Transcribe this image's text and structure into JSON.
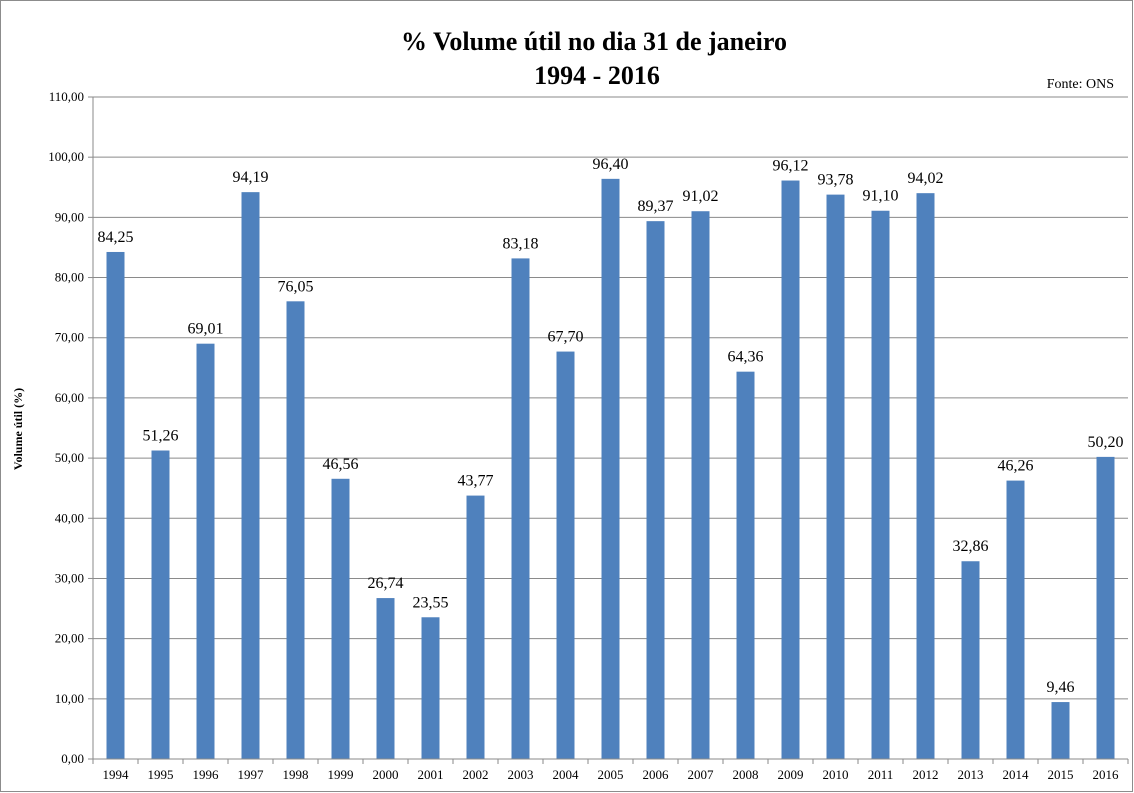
{
  "chart_data": {
    "type": "bar",
    "title": "% Volume útil no dia 31 de janeiro",
    "subtitle": "1994 - 2016",
    "source": "Fonte: ONS",
    "xlabel": "",
    "ylabel": "Volume útil (%)",
    "ylim": [
      0,
      110
    ],
    "ytick_step": 10,
    "y_ticks": [
      "0,00",
      "10,00",
      "20,00",
      "30,00",
      "40,00",
      "50,00",
      "60,00",
      "70,00",
      "80,00",
      "90,00",
      "100,00",
      "110,00"
    ],
    "grid": true,
    "bar_color": "#4F81BD",
    "categories": [
      "1994",
      "1995",
      "1996",
      "1997",
      "1998",
      "1999",
      "2000",
      "2001",
      "2002",
      "2003",
      "2004",
      "2005",
      "2006",
      "2007",
      "2008",
      "2009",
      "2010",
      "2011",
      "2012",
      "2013",
      "2014",
      "2015",
      "2016"
    ],
    "values": [
      84.25,
      51.26,
      69.01,
      94.19,
      76.05,
      46.56,
      26.74,
      23.55,
      43.77,
      83.18,
      67.7,
      96.4,
      89.37,
      91.02,
      64.36,
      96.12,
      93.78,
      91.1,
      94.02,
      32.86,
      46.26,
      9.46,
      50.2
    ],
    "value_labels": [
      "84,25",
      "51,26",
      "69,01",
      "94,19",
      "76,05",
      "46,56",
      "26,74",
      "23,55",
      "43,77",
      "83,18",
      "67,70",
      "96,40",
      "89,37",
      "91,02",
      "64,36",
      "96,12",
      "93,78",
      "91,10",
      "94,02",
      "32,86",
      "46,26",
      "9,46",
      "50,20"
    ]
  }
}
